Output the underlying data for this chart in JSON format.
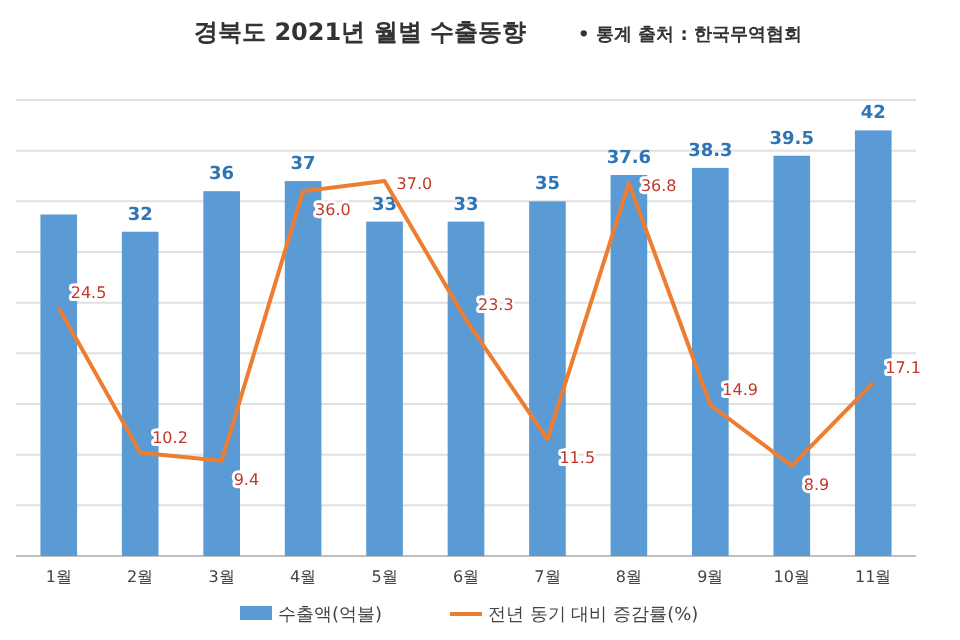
{
  "chart_data": {
    "type": "bar",
    "title": "경북도 2021년 월별 수출동향",
    "subtitle": "• 통계 출처 : 한국무역협회",
    "categories": [
      "1월",
      "2월",
      "3월",
      "4월",
      "5월",
      "6월",
      "7월",
      "8월",
      "9월",
      "10월",
      "11월"
    ],
    "series": [
      {
        "name": "수출액(억불)",
        "color": "#5b9bd5",
        "values": [
          33.7,
          32,
          36,
          37,
          33,
          33,
          35,
          37.6,
          38.3,
          39.5,
          42
        ],
        "value_labels": [
          null,
          "32",
          "36",
          "37",
          "33",
          "33",
          "35",
          "37.6",
          "38.3",
          "39.5",
          "42"
        ]
      },
      {
        "name": "전년 동기 대비 증감률(%)",
        "type": "line",
        "color": "#ed7d31",
        "values": [
          24.5,
          10.2,
          9.4,
          36.0,
          37.0,
          23.3,
          11.5,
          36.8,
          14.9,
          8.9,
          17.1
        ],
        "value_labels": [
          "24.5",
          "10.2",
          "9.4",
          "36.0",
          "37.0",
          "23.3",
          "11.5",
          "36.8",
          "14.9",
          "8.9",
          "17.1"
        ]
      }
    ],
    "ylim": [
      0,
      45
    ],
    "yticks": [
      {
        "value": 0,
        "label": null
      },
      {
        "value": 5,
        "label": null
      },
      {
        "value": 10,
        "label": null
      },
      {
        "value": 15,
        "label": null
      },
      {
        "value": 20,
        "label": null
      },
      {
        "value": 25,
        "label": null
      },
      {
        "value": 30,
        "label": null
      },
      {
        "value": 35,
        "label": null
      },
      {
        "value": 40,
        "label": null
      },
      {
        "value": 45,
        "label": null
      }
    ],
    "grid": "y",
    "legend": "bottom",
    "tick_labels": "x",
    "line_style": "solid",
    "marker": "none"
  }
}
